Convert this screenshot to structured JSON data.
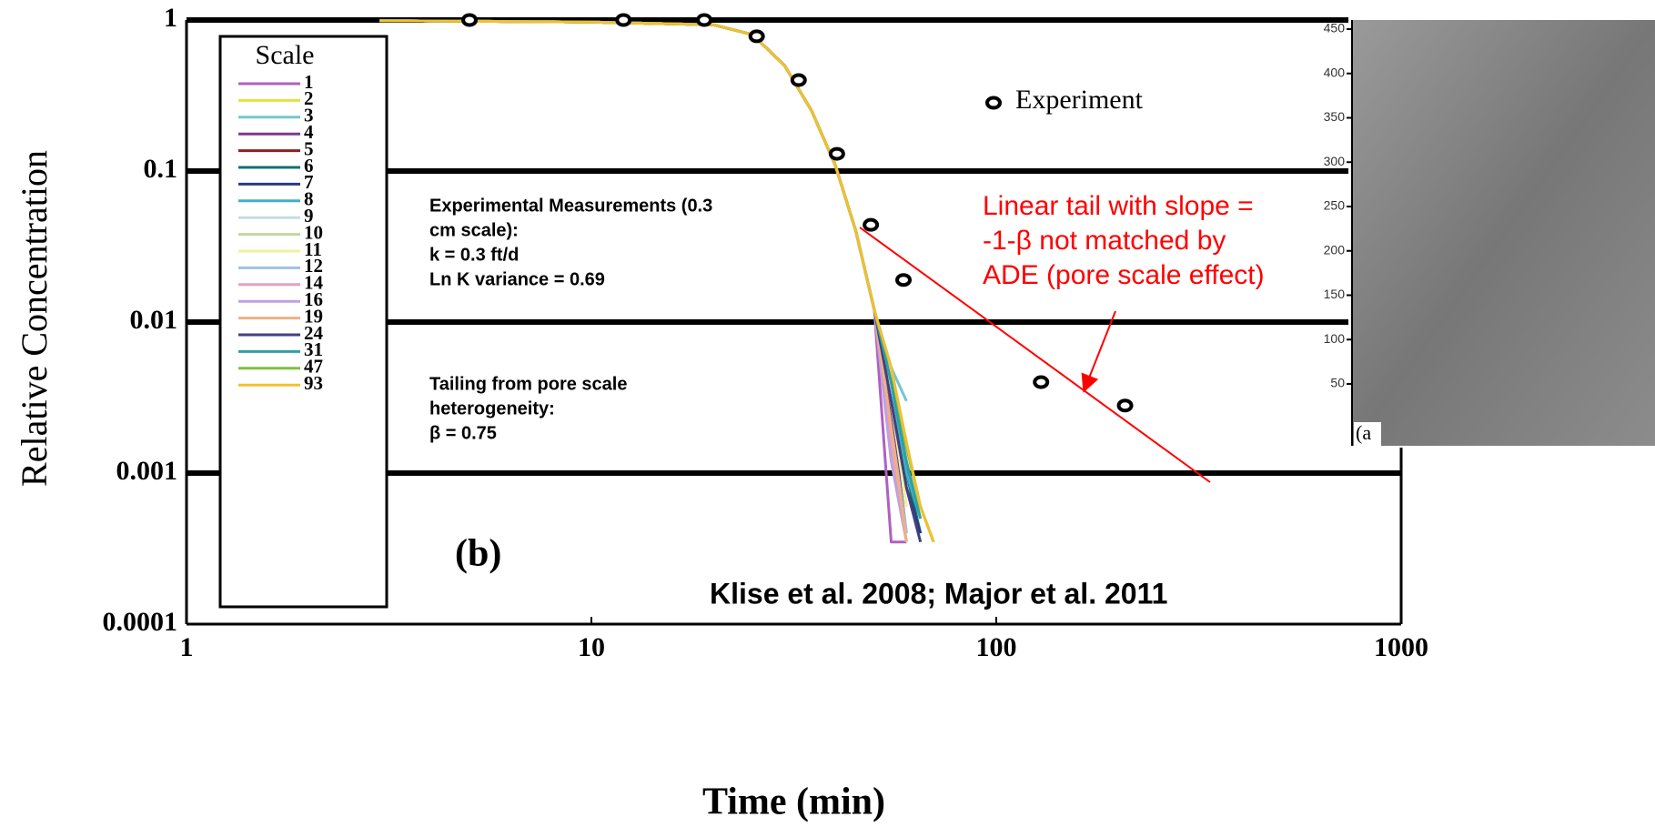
{
  "chart_data": {
    "type": "line",
    "xlabel": "Time (min)",
    "ylabel": "Relative Concentration",
    "xscale": "log",
    "yscale": "log",
    "xlim": [
      1,
      1000
    ],
    "ylim": [
      0.0001,
      1
    ],
    "xticks": [
      1,
      10,
      100,
      1000
    ],
    "yticks": [
      0.0001,
      0.001,
      0.01,
      0.1,
      1
    ],
    "grid": true,
    "legend_title": "Scale",
    "x": [
      3,
      10,
      20,
      25,
      30,
      35,
      40,
      45,
      50,
      55,
      60,
      65,
      70
    ],
    "series": [
      {
        "name": "1",
        "color": "#b060c0",
        "values": [
          0.99,
          0.97,
          0.93,
          0.8,
          0.5,
          0.25,
          0.11,
          0.04,
          0.012,
          0.00035,
          0.00035,
          null,
          null
        ]
      },
      {
        "name": "2",
        "color": "#e6e040",
        "values": [
          0.99,
          0.97,
          0.93,
          0.8,
          0.5,
          0.25,
          0.11,
          0.04,
          0.012,
          0.004,
          0.0015,
          0.0006,
          0.00035
        ]
      },
      {
        "name": "3",
        "color": "#70c8d0",
        "values": [
          0.99,
          0.97,
          0.93,
          0.8,
          0.5,
          0.25,
          0.11,
          0.04,
          0.012,
          0.005,
          0.003,
          null,
          null
        ]
      },
      {
        "name": "4",
        "color": "#7a3a8a",
        "values": [
          0.99,
          0.97,
          0.93,
          0.8,
          0.5,
          0.25,
          0.11,
          0.04,
          0.012,
          0.0025,
          0.0004,
          null,
          null
        ]
      },
      {
        "name": "5",
        "color": "#8b2020",
        "values": [
          0.99,
          0.97,
          0.93,
          0.8,
          0.5,
          0.25,
          0.11,
          0.04,
          0.012,
          0.003,
          0.0008,
          0.0004,
          null
        ]
      },
      {
        "name": "6",
        "color": "#107070",
        "values": [
          0.99,
          0.97,
          0.93,
          0.8,
          0.5,
          0.25,
          0.11,
          0.04,
          0.012,
          0.004,
          0.001,
          0.0004,
          null
        ]
      },
      {
        "name": "7",
        "color": "#2a3a80",
        "values": [
          0.99,
          0.97,
          0.93,
          0.8,
          0.5,
          0.25,
          0.11,
          0.04,
          0.012,
          0.003,
          0.0008,
          0.0004,
          null
        ]
      },
      {
        "name": "8",
        "color": "#40b0c8",
        "values": [
          0.99,
          0.97,
          0.93,
          0.8,
          0.5,
          0.25,
          0.11,
          0.04,
          0.012,
          0.004,
          0.001,
          0.0005,
          null
        ]
      },
      {
        "name": "9",
        "color": "#c0e0e0",
        "values": [
          0.99,
          0.97,
          0.93,
          0.8,
          0.5,
          0.25,
          0.11,
          0.04,
          0.012,
          0.002,
          0.0004,
          null,
          null
        ]
      },
      {
        "name": "10",
        "color": "#c0d8a0",
        "values": [
          0.99,
          0.97,
          0.93,
          0.8,
          0.5,
          0.25,
          0.11,
          0.04,
          0.012,
          0.003,
          0.0006,
          null,
          null
        ]
      },
      {
        "name": "11",
        "color": "#f0f0a0",
        "values": [
          0.99,
          0.97,
          0.93,
          0.8,
          0.5,
          0.25,
          0.11,
          0.04,
          0.012,
          0.003,
          0.0006,
          null,
          null
        ]
      },
      {
        "name": "12",
        "color": "#a0c0e0",
        "values": [
          0.99,
          0.97,
          0.93,
          0.8,
          0.5,
          0.25,
          0.11,
          0.04,
          0.012,
          0.002,
          0.0004,
          null,
          null
        ]
      },
      {
        "name": "14",
        "color": "#e8a0c0",
        "values": [
          0.99,
          0.97,
          0.93,
          0.8,
          0.5,
          0.25,
          0.11,
          0.04,
          0.012,
          0.0015,
          0.00035,
          null,
          null
        ]
      },
      {
        "name": "16",
        "color": "#c0a0e0",
        "values": [
          0.99,
          0.97,
          0.93,
          0.8,
          0.5,
          0.25,
          0.11,
          0.04,
          0.012,
          0.0012,
          0.00035,
          null,
          null
        ]
      },
      {
        "name": "19",
        "color": "#f0b080",
        "values": [
          0.99,
          0.97,
          0.93,
          0.8,
          0.5,
          0.25,
          0.11,
          0.04,
          0.012,
          0.002,
          0.00035,
          null,
          null
        ]
      },
      {
        "name": "24",
        "color": "#404080",
        "values": [
          0.99,
          0.97,
          0.93,
          0.8,
          0.5,
          0.25,
          0.11,
          0.04,
          0.012,
          0.003,
          0.0008,
          0.00035,
          null
        ]
      },
      {
        "name": "31",
        "color": "#30a0a0",
        "values": [
          0.99,
          0.97,
          0.93,
          0.8,
          0.5,
          0.25,
          0.11,
          0.04,
          0.012,
          0.004,
          0.0012,
          0.0005,
          null
        ]
      },
      {
        "name": "47",
        "color": "#80c040",
        "values": [
          0.99,
          0.97,
          0.93,
          0.8,
          0.5,
          0.25,
          0.11,
          0.04,
          0.012,
          0.005,
          0.0015,
          0.0006,
          0.00035
        ]
      },
      {
        "name": "93",
        "color": "#f0c030",
        "values": [
          0.99,
          0.97,
          0.93,
          0.8,
          0.5,
          0.25,
          0.11,
          0.04,
          0.012,
          0.005,
          0.0016,
          0.0006,
          0.00035
        ]
      }
    ],
    "points": {
      "name": "Experiment",
      "color": "#000000",
      "x": [
        5,
        12,
        19,
        25.6,
        32.5,
        40.4,
        49,
        59,
        129,
        208
      ],
      "values": [
        1,
        1,
        1,
        0.78,
        0.4,
        0.13,
        0.044,
        0.019,
        0.004,
        0.0028
      ]
    },
    "annotations": [
      {
        "lines": [
          "Experimental Measurements (0.3",
          "cm scale):",
          "k = 0.3 ft/d",
          "Ln K variance = 0.69"
        ]
      },
      {
        "lines": [
          "Tailing from pore scale",
          "heterogeneity:",
          "β  = 0.75"
        ]
      },
      {
        "lines": [
          "Linear tail with slope =",
          "-1-β not matched by",
          "ADE (pore scale effect)"
        ],
        "color": "#ff0000"
      },
      {
        "lines": [
          "Klise et al. 2008; Major et al. 2011"
        ]
      },
      {
        "lines": [
          "(b)"
        ]
      }
    ]
  },
  "inset": {
    "yticks": [
      50,
      100,
      150,
      200,
      250,
      300,
      350,
      400,
      450
    ],
    "label": "(a"
  }
}
